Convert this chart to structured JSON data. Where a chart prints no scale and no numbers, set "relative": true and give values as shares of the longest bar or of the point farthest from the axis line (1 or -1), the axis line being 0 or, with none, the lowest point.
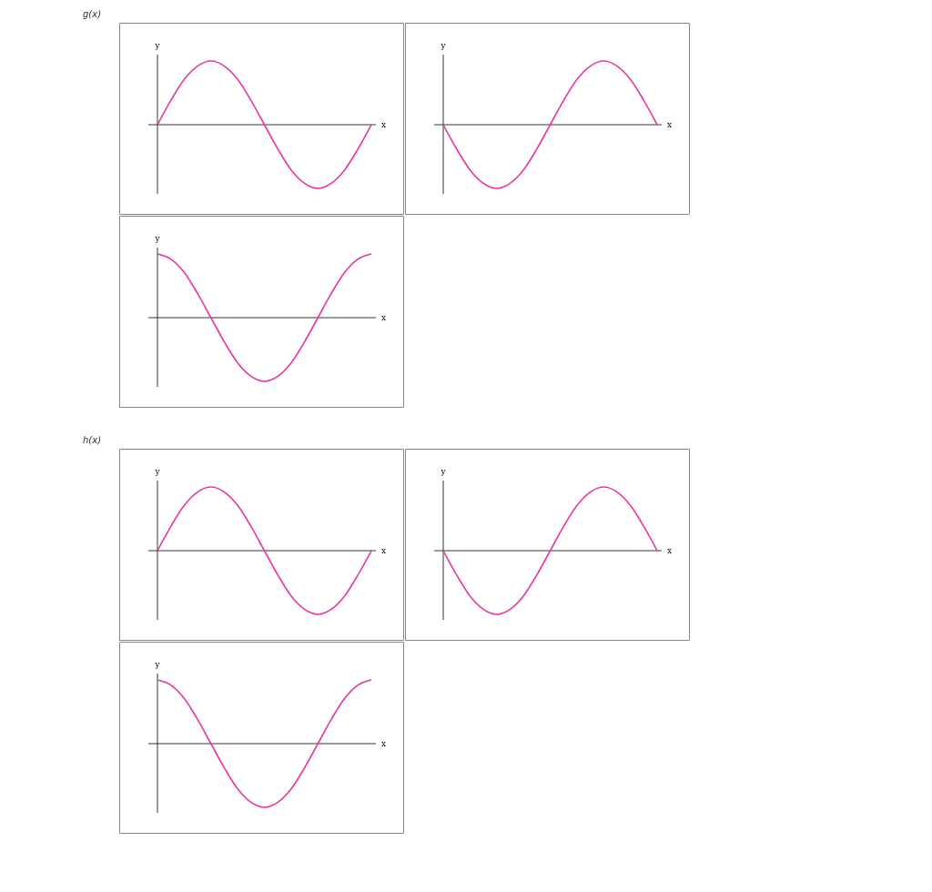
{
  "chart_data": [
    {
      "type": "line",
      "title": "g(x)",
      "relative": true,
      "xlabel": "x",
      "ylabel": "y",
      "categories": [
        null,
        null,
        null,
        null,
        null,
        null,
        null,
        null,
        null,
        null,
        null,
        null,
        null,
        null,
        null,
        null,
        null
      ],
      "series": [
        {
          "color": "#e8389e",
          "values": [
            0,
            0.38,
            0.71,
            0.92,
            1,
            0.92,
            0.71,
            0.38,
            0,
            -0.38,
            -0.71,
            -0.92,
            -1,
            -0.92,
            -0.71,
            -0.38,
            0
          ]
        }
      ]
    },
    {
      "type": "line",
      "relative": true,
      "xlabel": "x",
      "ylabel": "y",
      "categories": [
        null,
        null,
        null,
        null,
        null,
        null,
        null,
        null,
        null,
        null,
        null,
        null,
        null,
        null,
        null,
        null,
        null
      ],
      "series": [
        {
          "color": "#e8389e",
          "values": [
            0,
            -0.38,
            -0.71,
            -0.92,
            -1,
            -0.92,
            -0.71,
            -0.38,
            0,
            0.38,
            0.71,
            0.92,
            1,
            0.92,
            0.71,
            0.38,
            0
          ]
        }
      ]
    },
    {
      "type": "line",
      "relative": true,
      "xlabel": "x",
      "ylabel": "y",
      "categories": [
        null,
        null,
        null,
        null,
        null,
        null,
        null,
        null,
        null,
        null,
        null,
        null,
        null,
        null,
        null,
        null,
        null
      ],
      "series": [
        {
          "color": "#e8389e",
          "values": [
            1,
            0.92,
            0.71,
            0.38,
            0,
            -0.38,
            -0.71,
            -0.92,
            -1,
            -0.92,
            -0.71,
            -0.38,
            0,
            0.38,
            0.71,
            0.92,
            1
          ]
        }
      ]
    },
    {
      "type": "line",
      "title": "h(x)",
      "relative": true,
      "xlabel": "x",
      "ylabel": "y",
      "categories": [
        null,
        null,
        null,
        null,
        null,
        null,
        null,
        null,
        null,
        null,
        null,
        null,
        null,
        null,
        null,
        null,
        null
      ],
      "series": [
        {
          "color": "#e8389e",
          "values": [
            0,
            0.38,
            0.71,
            0.92,
            1,
            0.92,
            0.71,
            0.38,
            0,
            -0.38,
            -0.71,
            -0.92,
            -1,
            -0.92,
            -0.71,
            -0.38,
            0
          ]
        }
      ]
    },
    {
      "type": "line",
      "relative": true,
      "xlabel": "x",
      "ylabel": "y",
      "categories": [
        null,
        null,
        null,
        null,
        null,
        null,
        null,
        null,
        null,
        null,
        null,
        null,
        null,
        null,
        null,
        null,
        null
      ],
      "series": [
        {
          "color": "#e8389e",
          "values": [
            0,
            -0.38,
            -0.71,
            -0.92,
            -1,
            -0.92,
            -0.71,
            -0.38,
            0,
            0.38,
            0.71,
            0.92,
            1,
            0.92,
            0.71,
            0.38,
            0
          ]
        }
      ]
    },
    {
      "type": "line",
      "relative": true,
      "xlabel": "x",
      "ylabel": "y",
      "categories": [
        null,
        null,
        null,
        null,
        null,
        null,
        null,
        null,
        null,
        null,
        null,
        null,
        null,
        null,
        null,
        null,
        null
      ],
      "series": [
        {
          "color": "#e8389e",
          "values": [
            1,
            0.92,
            0.71,
            0.38,
            0,
            -0.38,
            -0.71,
            -0.92,
            -1,
            -0.92,
            -0.71,
            -0.38,
            0,
            0.38,
            0.71,
            0.92,
            1
          ]
        }
      ]
    }
  ]
}
